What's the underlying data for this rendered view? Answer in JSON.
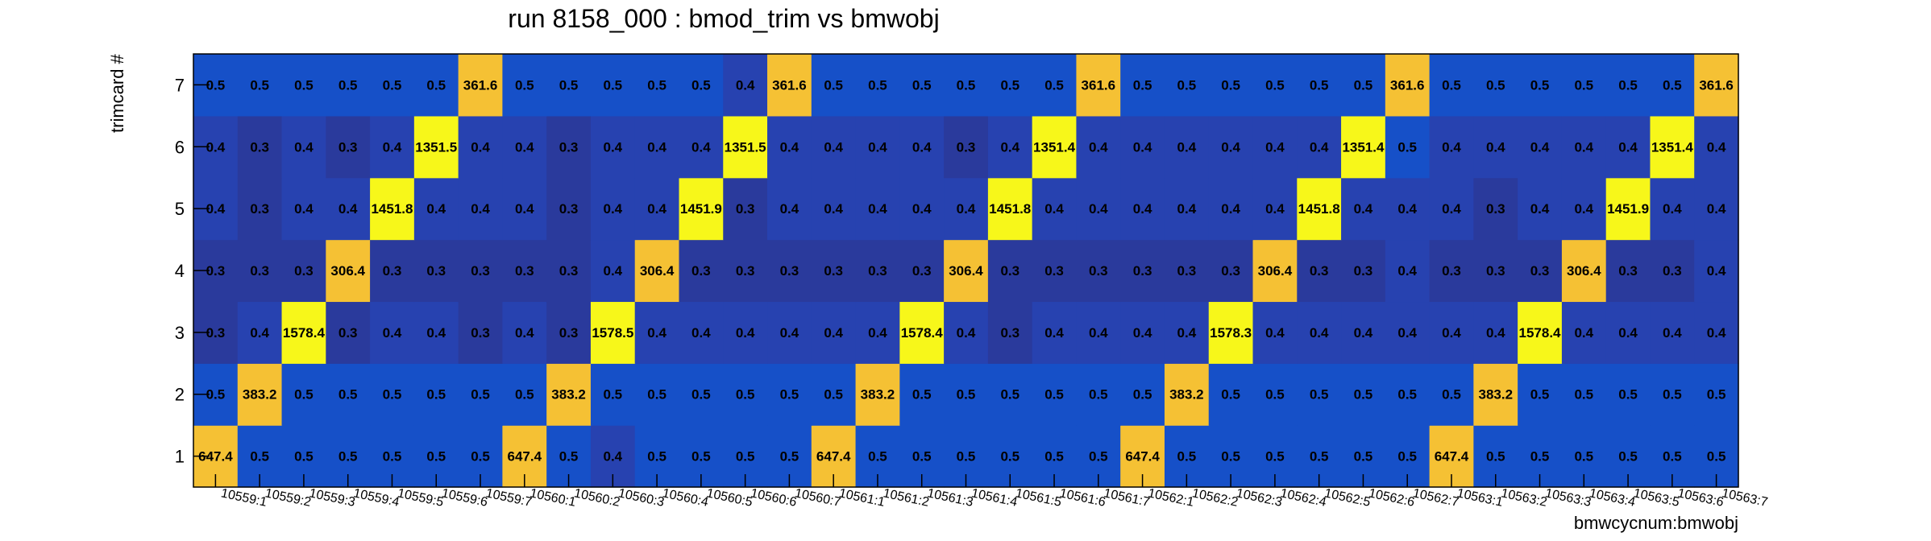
{
  "chart_data": {
    "type": "heatmap",
    "title": "run 8158_000 : bmod_trim vs bmwobj",
    "xlabel": "bmwcycnum:bmwobj",
    "ylabel": "trimcard #",
    "x_categories": [
      "10559:1",
      "10559:2",
      "10559:3",
      "10559:4",
      "10559:5",
      "10559:6",
      "10559:7",
      "10560:1",
      "10560:2",
      "10560:3",
      "10560:4",
      "10560:5",
      "10560:6",
      "10560:7",
      "10561:1",
      "10561:2",
      "10561:3",
      "10561:4",
      "10561:5",
      "10561:6",
      "10561:7",
      "10562:1",
      "10562:2",
      "10562:3",
      "10562:4",
      "10562:5",
      "10562:6",
      "10562:7",
      "10563:1",
      "10563:2",
      "10563:3",
      "10563:4",
      "10563:5",
      "10563:6",
      "10563:7"
    ],
    "y_categories": [
      "1",
      "2",
      "3",
      "4",
      "5",
      "6",
      "7"
    ],
    "values": [
      [
        "647.4",
        "0.5",
        "0.5",
        "0.5",
        "0.5",
        "0.5",
        "0.5",
        "647.4",
        "0.5",
        "0.4",
        "0.5",
        "0.5",
        "0.5",
        "0.5",
        "647.4",
        "0.5",
        "0.5",
        "0.5",
        "0.5",
        "0.5",
        "0.5",
        "647.4",
        "0.5",
        "0.5",
        "0.5",
        "0.5",
        "0.5",
        "0.5",
        "647.4",
        "0.5",
        "0.5",
        "0.5",
        "0.5",
        "0.5",
        "0.5"
      ],
      [
        "0.5",
        "383.2",
        "0.5",
        "0.5",
        "0.5",
        "0.5",
        "0.5",
        "0.5",
        "383.2",
        "0.5",
        "0.5",
        "0.5",
        "0.5",
        "0.5",
        "0.5",
        "383.2",
        "0.5",
        "0.5",
        "0.5",
        "0.5",
        "0.5",
        "0.5",
        "383.2",
        "0.5",
        "0.5",
        "0.5",
        "0.5",
        "0.5",
        "0.5",
        "383.2",
        "0.5",
        "0.5",
        "0.5",
        "0.5",
        "0.5"
      ],
      [
        "0.3",
        "0.4",
        "1578.4",
        "0.3",
        "0.4",
        "0.4",
        "0.3",
        "0.4",
        "0.3",
        "1578.5",
        "0.4",
        "0.4",
        "0.4",
        "0.4",
        "0.4",
        "0.4",
        "1578.4",
        "0.4",
        "0.3",
        "0.4",
        "0.4",
        "0.4",
        "0.4",
        "1578.3",
        "0.4",
        "0.4",
        "0.4",
        "0.4",
        "0.4",
        "0.4",
        "1578.4",
        "0.4",
        "0.4",
        "0.4",
        "0.4"
      ],
      [
        "0.3",
        "0.3",
        "0.3",
        "306.4",
        "0.3",
        "0.3",
        "0.3",
        "0.3",
        "0.3",
        "0.4",
        "306.4",
        "0.3",
        "0.3",
        "0.3",
        "0.3",
        "0.3",
        "0.3",
        "306.4",
        "0.3",
        "0.3",
        "0.3",
        "0.3",
        "0.3",
        "0.3",
        "306.4",
        "0.3",
        "0.3",
        "0.4",
        "0.3",
        "0.3",
        "0.3",
        "306.4",
        "0.3",
        "0.3",
        "0.4"
      ],
      [
        "0.4",
        "0.3",
        "0.4",
        "0.4",
        "1451.8",
        "0.4",
        "0.4",
        "0.4",
        "0.3",
        "0.4",
        "0.4",
        "1451.9",
        "0.3",
        "0.4",
        "0.4",
        "0.4",
        "0.4",
        "0.4",
        "1451.8",
        "0.4",
        "0.4",
        "0.4",
        "0.4",
        "0.4",
        "0.4",
        "1451.8",
        "0.4",
        "0.4",
        "0.4",
        "0.3",
        "0.4",
        "0.4",
        "1451.9",
        "0.4",
        "0.4"
      ],
      [
        "0.4",
        "0.3",
        "0.4",
        "0.3",
        "0.4",
        "1351.5",
        "0.4",
        "0.4",
        "0.3",
        "0.4",
        "0.4",
        "0.4",
        "1351.5",
        "0.4",
        "0.4",
        "0.4",
        "0.4",
        "0.3",
        "0.4",
        "1351.4",
        "0.4",
        "0.4",
        "0.4",
        "0.4",
        "0.4",
        "0.4",
        "1351.4",
        "0.5",
        "0.4",
        "0.4",
        "0.4",
        "0.4",
        "0.4",
        "1351.4",
        "0.4"
      ],
      [
        "0.5",
        "0.5",
        "0.5",
        "0.5",
        "0.5",
        "0.5",
        "361.6",
        "0.5",
        "0.5",
        "0.5",
        "0.5",
        "0.5",
        "0.4",
        "361.6",
        "0.5",
        "0.5",
        "0.5",
        "0.5",
        "0.5",
        "0.5",
        "361.6",
        "0.5",
        "0.5",
        "0.5",
        "0.5",
        "0.5",
        "0.5",
        "361.6",
        "0.5",
        "0.5",
        "0.5",
        "0.5",
        "0.5",
        "0.5",
        "361.6"
      ]
    ],
    "colors": {
      "low_dark": "#2a3a9c",
      "low_mid": "#2742b0",
      "low_bright": "#1650c8",
      "high_yellow": "#f7f71a",
      "high_orange": "#f5c134",
      "axis": "#000000"
    },
    "grid": false,
    "legend": "none"
  }
}
